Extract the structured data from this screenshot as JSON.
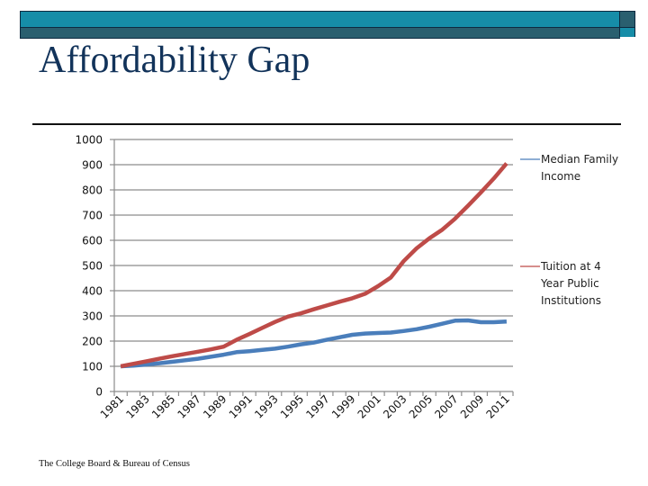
{
  "slide": {
    "title": "Affordability Gap",
    "source": "The College Board & Bureau of Census",
    "colors": {
      "banner_light": "#168da8",
      "banner_dark": "#2a5f6f",
      "title": "#12335a"
    }
  },
  "chart_data": {
    "type": "line",
    "title": "",
    "xlabel": "",
    "ylabel": "",
    "ylim": [
      0,
      1000
    ],
    "yticks": [
      0,
      100,
      200,
      300,
      400,
      500,
      600,
      700,
      800,
      900,
      1000
    ],
    "grid": true,
    "legend_position": "right",
    "x": [
      1981,
      1982,
      1983,
      1984,
      1985,
      1986,
      1987,
      1988,
      1989,
      1990,
      1991,
      1992,
      1993,
      1994,
      1995,
      1996,
      1997,
      1998,
      1999,
      2000,
      2001,
      2002,
      2003,
      2004,
      2005,
      2006,
      2007,
      2008,
      2009,
      2010,
      2011
    ],
    "x_tick_labels": [
      "1981",
      "1983",
      "1985",
      "1987",
      "1989",
      "1991",
      "1993",
      "1995",
      "1997",
      "1999",
      "2001",
      "2003",
      "2005",
      "2007",
      "2009",
      "2011"
    ],
    "series": [
      {
        "name": "Median Family Income",
        "legend_lines": [
          "Median Family",
          "Income"
        ],
        "color": "#4a7ebb",
        "values": [
          100,
          103,
          107,
          112,
          118,
          124,
          130,
          138,
          146,
          156,
          160,
          165,
          170,
          178,
          187,
          194,
          205,
          215,
          225,
          230,
          232,
          234,
          240,
          247,
          257,
          269,
          281,
          282,
          275,
          275,
          278
        ]
      },
      {
        "name": "Tuition at 4 Year Public Institutions",
        "legend_lines": [
          "Tuition at 4",
          "Year Public",
          "Institutions"
        ],
        "color": "#be4b48",
        "values": [
          100,
          110,
          120,
          130,
          140,
          149,
          158,
          167,
          178,
          205,
          228,
          252,
          276,
          297,
          310,
          326,
          341,
          356,
          370,
          388,
          418,
          452,
          517,
          568,
          608,
          642,
          686,
          737,
          790,
          845,
          905
        ]
      }
    ]
  }
}
